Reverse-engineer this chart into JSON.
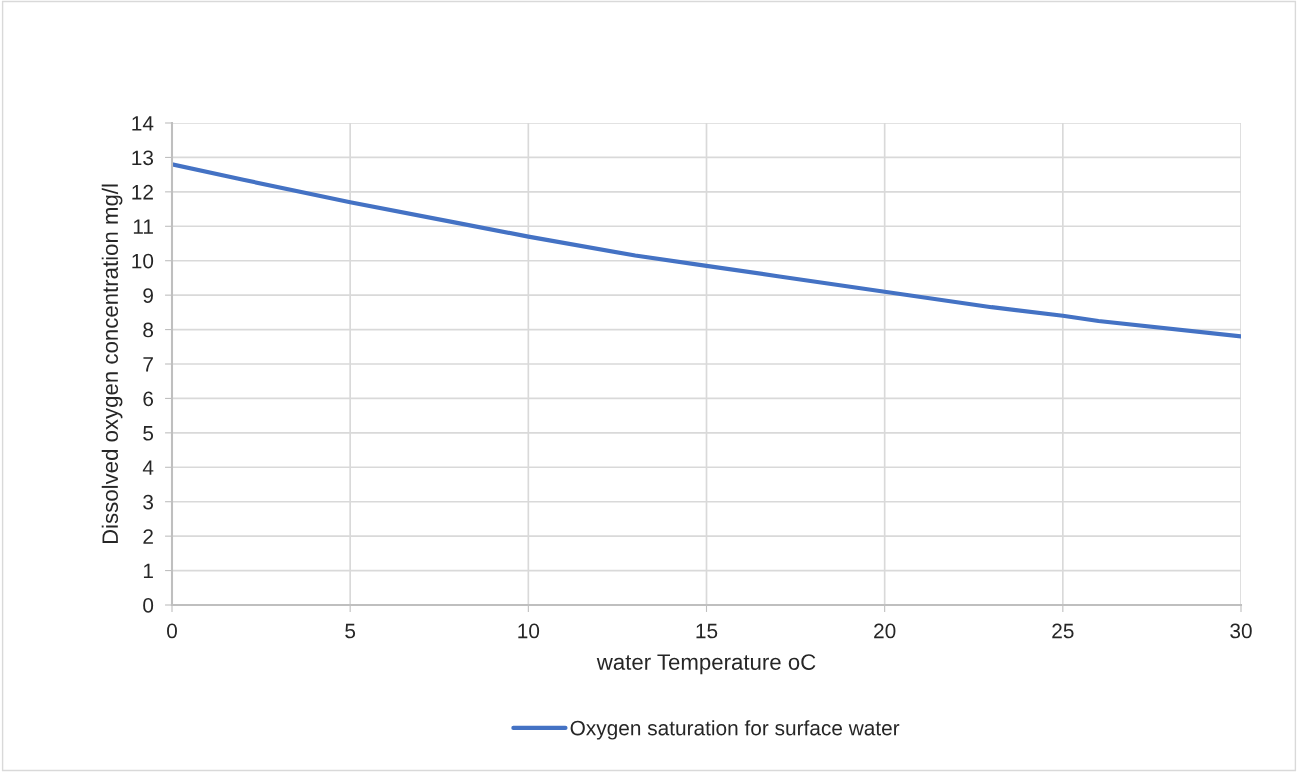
{
  "chart_data": {
    "type": "line",
    "xlabel": "water Temperature oC",
    "ylabel": "Dissolved oxygen concentration mg/l",
    "x": [
      0,
      2,
      5,
      8,
      10,
      13,
      15,
      17,
      20,
      23,
      25,
      26,
      30
    ],
    "series": [
      {
        "name": "Oxygen saturation for surface water",
        "color": "#4472c4",
        "values": [
          12.8,
          12.35,
          11.7,
          11.1,
          10.7,
          10.15,
          9.85,
          9.55,
          9.1,
          8.65,
          8.4,
          8.25,
          7.8
        ]
      }
    ],
    "xlim": [
      0,
      30
    ],
    "xticks": [
      0,
      5,
      10,
      15,
      20,
      25,
      30
    ],
    "ylim": [
      0,
      14
    ],
    "yticks": [
      0,
      1,
      2,
      3,
      4,
      5,
      6,
      7,
      8,
      9,
      10,
      11,
      12,
      13,
      14
    ],
    "grid": true,
    "legend": "bottom",
    "marker": "none",
    "line_style": "solid"
  }
}
